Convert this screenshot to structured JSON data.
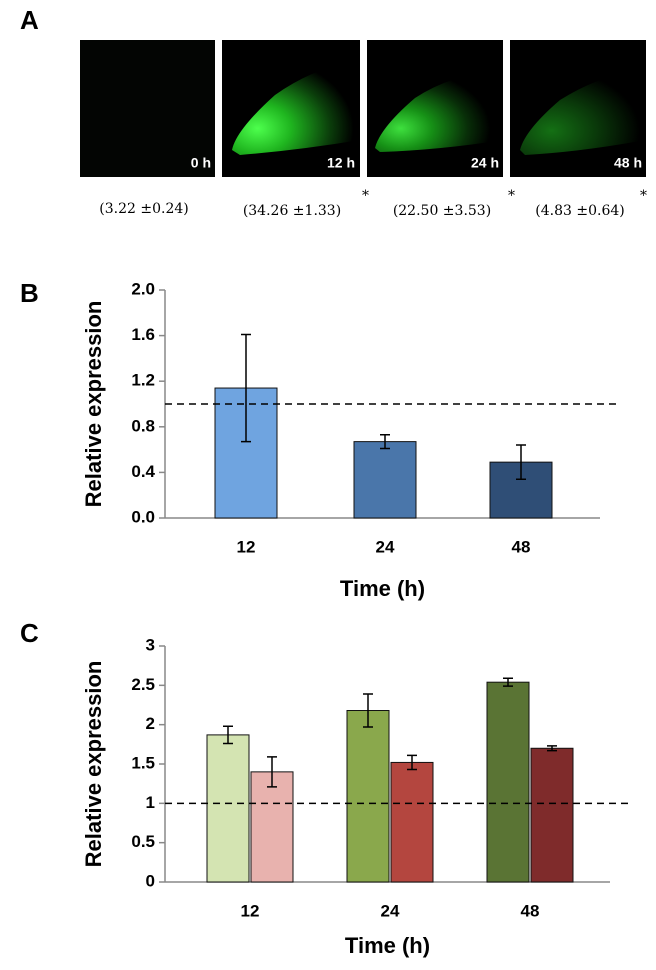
{
  "panel_a": {
    "label": "A",
    "images": [
      {
        "label": "0 h",
        "value_text": "(3.22 ±0.24)"
      },
      {
        "label": "12 h",
        "value_text": "(34.26 ±1.33)",
        "mark": "*"
      },
      {
        "label": "24 h",
        "value_text": "(22.50 ±3.53)",
        "mark": "*"
      },
      {
        "label": "48 h",
        "value_text": "(4.83 ±0.64)",
        "mark": "*"
      }
    ]
  },
  "chart_data": [
    {
      "type": "bar",
      "panel": "B",
      "xlabel": "Time (h)",
      "ylabel": "Relative expression",
      "categories": [
        "12",
        "24",
        "48"
      ],
      "series": [
        {
          "colors": [
            "#6fa4e0",
            "#4a76aa",
            "#2f4e76"
          ],
          "values": [
            1.14,
            0.67,
            0.49
          ],
          "errors": [
            0.47,
            0.06,
            0.15
          ]
        }
      ],
      "ylim": [
        0,
        2.0
      ],
      "yticks": [
        {
          "value": 0,
          "label": "0.0"
        },
        0.4,
        0.8,
        1.2,
        1.6,
        {
          "value": 2.0,
          "label": "2.0"
        }
      ],
      "reference_line": 1.0
    },
    {
      "type": "bar",
      "panel": "C",
      "xlabel": "Time (h)",
      "ylabel": "Relative expression",
      "categories": [
        "12",
        "24",
        "48"
      ],
      "series": [
        {
          "colors": [
            "#d4e4b2",
            "#8aa84c",
            "#5a7434"
          ],
          "values": [
            1.87,
            2.18,
            2.54
          ],
          "errors": [
            0.11,
            0.21,
            0.05
          ]
        },
        {
          "colors": [
            "#e8b2ae",
            "#b4463f",
            "#7f2b2b"
          ],
          "values": [
            1.4,
            1.52,
            1.7
          ],
          "errors": [
            0.19,
            0.09,
            0.03
          ]
        }
      ],
      "ylim": [
        0,
        3
      ],
      "yticks": [
        0,
        0.5,
        1,
        1.5,
        2,
        2.5,
        3
      ],
      "reference_line": 1
    }
  ]
}
